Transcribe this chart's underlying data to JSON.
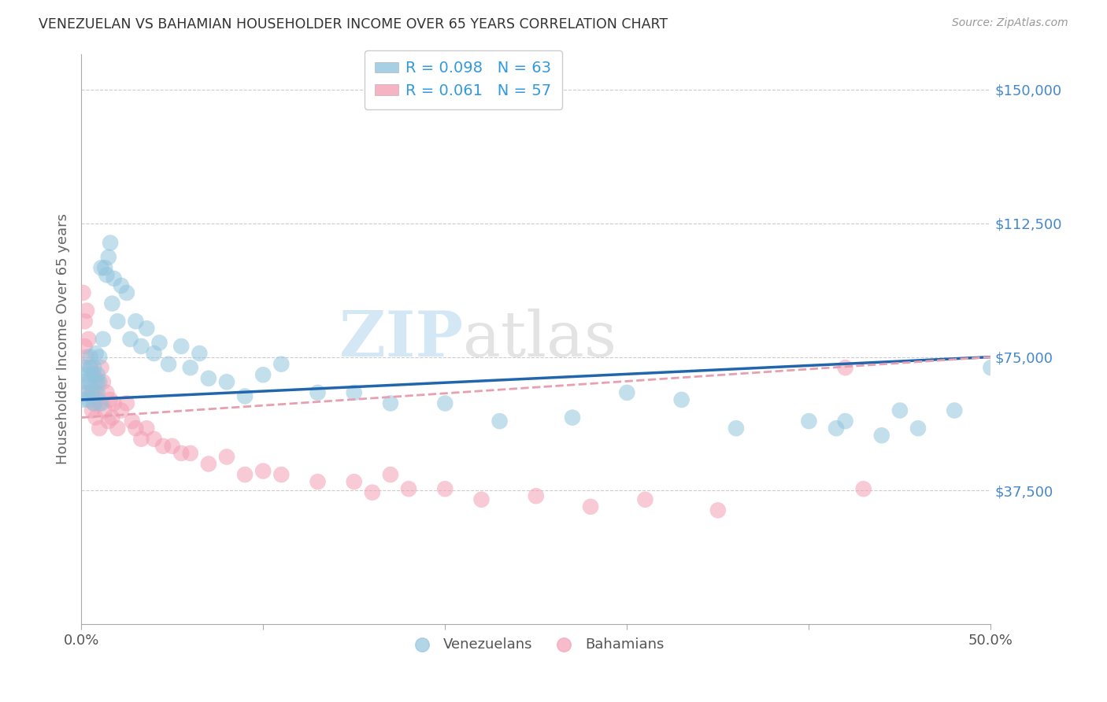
{
  "title": "VENEZUELAN VS BAHAMIAN HOUSEHOLDER INCOME OVER 65 YEARS CORRELATION CHART",
  "source": "Source: ZipAtlas.com",
  "ylabel": "Householder Income Over 65 years",
  "xlim": [
    0.0,
    0.5
  ],
  "ylim": [
    0,
    160000
  ],
  "yticks": [
    0,
    37500,
    75000,
    112500,
    150000
  ],
  "ytick_labels": [
    "",
    "$37,500",
    "$75,000",
    "$112,500",
    "$150,000"
  ],
  "legend_r1": "R = 0.098",
  "legend_n1": "N = 63",
  "legend_r2": "R = 0.061",
  "legend_n2": "N = 57",
  "venezuelan_color": "#92c5de",
  "bahamian_color": "#f4a0b5",
  "venezuelan_line_color": "#2166ac",
  "bahamian_line_color": "#e8a0b0",
  "watermark_zip": "ZIP",
  "watermark_atlas": "atlas",
  "background_color": "#ffffff",
  "grid_color": "#cccccc",
  "venezuelan_x": [
    0.001,
    0.002,
    0.002,
    0.003,
    0.003,
    0.004,
    0.004,
    0.005,
    0.005,
    0.006,
    0.006,
    0.007,
    0.007,
    0.008,
    0.008,
    0.009,
    0.009,
    0.01,
    0.01,
    0.011,
    0.011,
    0.012,
    0.013,
    0.014,
    0.015,
    0.016,
    0.017,
    0.018,
    0.02,
    0.022,
    0.025,
    0.027,
    0.03,
    0.033,
    0.036,
    0.04,
    0.043,
    0.048,
    0.055,
    0.06,
    0.065,
    0.07,
    0.08,
    0.09,
    0.1,
    0.11,
    0.13,
    0.15,
    0.17,
    0.2,
    0.23,
    0.27,
    0.3,
    0.33,
    0.36,
    0.4,
    0.42,
    0.45,
    0.46,
    0.48,
    0.5,
    0.415,
    0.44
  ],
  "venezuelan_y": [
    63000,
    68000,
    72000,
    65000,
    70000,
    63000,
    68000,
    72000,
    75000,
    65000,
    70000,
    62000,
    72000,
    68000,
    76000,
    65000,
    70000,
    68000,
    75000,
    62000,
    100000,
    80000,
    100000,
    98000,
    103000,
    107000,
    90000,
    97000,
    85000,
    95000,
    93000,
    80000,
    85000,
    78000,
    83000,
    76000,
    79000,
    73000,
    78000,
    72000,
    76000,
    69000,
    68000,
    64000,
    70000,
    73000,
    65000,
    65000,
    62000,
    62000,
    57000,
    58000,
    65000,
    63000,
    55000,
    57000,
    57000,
    60000,
    55000,
    60000,
    72000,
    55000,
    53000
  ],
  "bahamian_x": [
    0.001,
    0.002,
    0.002,
    0.003,
    0.003,
    0.004,
    0.004,
    0.005,
    0.005,
    0.006,
    0.006,
    0.007,
    0.007,
    0.008,
    0.008,
    0.009,
    0.009,
    0.01,
    0.01,
    0.011,
    0.012,
    0.013,
    0.014,
    0.015,
    0.016,
    0.017,
    0.018,
    0.02,
    0.022,
    0.025,
    0.028,
    0.03,
    0.033,
    0.036,
    0.04,
    0.045,
    0.05,
    0.055,
    0.06,
    0.07,
    0.08,
    0.09,
    0.1,
    0.11,
    0.13,
    0.15,
    0.16,
    0.17,
    0.18,
    0.2,
    0.22,
    0.25,
    0.28,
    0.31,
    0.35,
    0.42,
    0.43
  ],
  "bahamian_y": [
    93000,
    85000,
    78000,
    88000,
    75000,
    65000,
    80000,
    68000,
    72000,
    60000,
    65000,
    62000,
    70000,
    58000,
    65000,
    63000,
    68000,
    55000,
    62000,
    72000,
    68000,
    60000,
    65000,
    57000,
    63000,
    58000,
    62000,
    55000,
    60000,
    62000,
    57000,
    55000,
    52000,
    55000,
    52000,
    50000,
    50000,
    48000,
    48000,
    45000,
    47000,
    42000,
    43000,
    42000,
    40000,
    40000,
    37000,
    42000,
    38000,
    38000,
    35000,
    36000,
    33000,
    35000,
    32000,
    72000,
    38000
  ]
}
